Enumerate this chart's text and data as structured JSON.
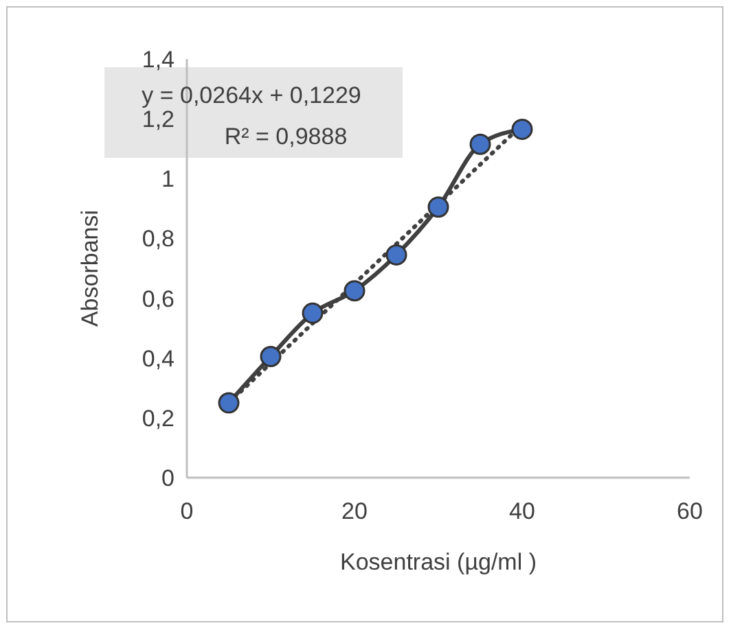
{
  "chart_data": {
    "type": "line",
    "xlabel": "Kosentrasi (µg/ml )",
    "ylabel": "Absorbansi",
    "x": [
      5,
      10,
      15,
      20,
      25,
      30,
      35,
      40
    ],
    "series": [
      {
        "color": "#4472c4",
        "values": [
          0.25,
          0.405,
          0.55,
          0.625,
          0.745,
          0.905,
          1.115,
          1.165
        ],
        "marker": "circle",
        "line_style": "solid"
      },
      {
        "type": "line",
        "x": [
          5,
          40
        ],
        "color": "#404040",
        "values": [
          0.25,
          1.18
        ],
        "marker": "none",
        "line_style": "dotted"
      }
    ],
    "xlim": [
      0,
      60
    ],
    "xticks": [
      0,
      20,
      40,
      60
    ],
    "ylim": [
      0,
      1.4
    ],
    "yticks": [
      0,
      {
        "value": 0.2,
        "label": "0,2"
      },
      {
        "value": 0.4,
        "label": "0,4"
      },
      {
        "value": 0.6,
        "label": "0,6"
      },
      {
        "value": 0.8,
        "label": "0,8"
      },
      1,
      {
        "value": 1.2,
        "label": "1,2"
      },
      {
        "value": 1.4,
        "label": "1,4"
      }
    ],
    "annotations": [
      "y = 0,0264x + 0,1229",
      "R² = 0,9888"
    ],
    "grid": false
  }
}
